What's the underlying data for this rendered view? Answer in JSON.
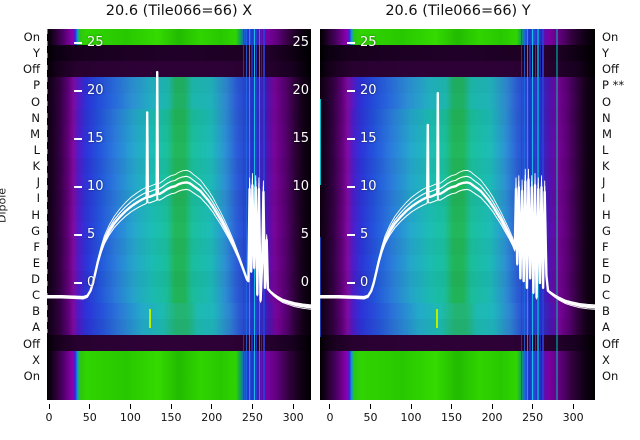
{
  "titles": {
    "left": "20.6 (Tile066=66) X",
    "right": "20.6 (Tile066=66) Y"
  },
  "dipole_axis": {
    "label": "Dipole",
    "left_labels": [
      "On",
      "Y",
      "Off",
      "P",
      "O",
      "N",
      "M",
      "L",
      "K",
      "J",
      "I",
      "H",
      "G",
      "F",
      "E",
      "D",
      "C",
      "B",
      "A",
      "Off",
      "X",
      "On"
    ],
    "right_labels": [
      "On",
      "Y",
      "Off",
      "P **",
      "O",
      "N",
      "M",
      "L",
      "K",
      "J",
      "I",
      "H",
      "G",
      "F",
      "E",
      "D",
      "C",
      "B",
      "A",
      "Off",
      "X",
      "On"
    ]
  },
  "heatmap_rows": {
    "types": [
      "bright",
      "dark",
      "off",
      "data_top",
      "data_top",
      "data_mid",
      "data_mid",
      "data_mid",
      "data_mid",
      "data_mid",
      "data_mid",
      "data_mid",
      "data_mid",
      "data_mid",
      "data_mid",
      "data_mid",
      "data_mid",
      "data_low",
      "data_low",
      "off",
      "bright",
      "bright",
      "bright"
    ],
    "gradients": {
      "bright": [
        [
          0,
          "#000000"
        ],
        [
          0.012,
          "#0c0010"
        ],
        [
          0.03,
          "#270030"
        ],
        [
          0.055,
          "#44005c"
        ],
        [
          0.08,
          "#70008e"
        ],
        [
          0.098,
          "#8a00b2"
        ],
        [
          0.107,
          "#3328d8"
        ],
        [
          0.115,
          "#0a9ae0"
        ],
        [
          0.124,
          "#2cc414"
        ],
        [
          0.15,
          "#30d400"
        ],
        [
          0.3,
          "#28c800"
        ],
        [
          0.42,
          "#34da00"
        ],
        [
          0.5,
          "#22bb00"
        ],
        [
          0.58,
          "#30d400"
        ],
        [
          0.66,
          "#28c800"
        ],
        [
          0.715,
          "#2fd400"
        ],
        [
          0.733,
          "#0f9e60"
        ],
        [
          0.748,
          "#1d59d8"
        ],
        [
          0.762,
          "#2233cc"
        ],
        [
          0.775,
          "#1d59d8"
        ],
        [
          0.79,
          "#2d2cc4"
        ],
        [
          0.81,
          "#5512b0"
        ],
        [
          0.835,
          "#7a00a0"
        ],
        [
          0.875,
          "#5c0078"
        ],
        [
          0.915,
          "#33003f"
        ],
        [
          0.955,
          "#14001a"
        ],
        [
          1,
          "#000000"
        ]
      ],
      "dark": [
        [
          0,
          "#000000"
        ],
        [
          0.03,
          "#0b0010"
        ],
        [
          0.1,
          "#16001c"
        ],
        [
          0.3,
          "#1d0024"
        ],
        [
          0.5,
          "#200028"
        ],
        [
          0.73,
          "#1d0024"
        ],
        [
          0.8,
          "#2a0133"
        ],
        [
          0.9,
          "#16001c"
        ],
        [
          1,
          "#000000"
        ]
      ],
      "off": [
        [
          0,
          "#000000"
        ],
        [
          0.02,
          "#0e0012"
        ],
        [
          0.06,
          "#1c0022"
        ],
        [
          0.12,
          "#280130"
        ],
        [
          0.35,
          "#2d0136"
        ],
        [
          0.65,
          "#2d0136"
        ],
        [
          0.82,
          "#280130"
        ],
        [
          0.93,
          "#180020"
        ],
        [
          1,
          "#000000"
        ]
      ],
      "data_top": [
        [
          0,
          "#0d0010"
        ],
        [
          0.02,
          "#1a0022"
        ],
        [
          0.05,
          "#330042"
        ],
        [
          0.08,
          "#5c0076"
        ],
        [
          0.1,
          "#7c0a9e"
        ],
        [
          0.12,
          "#5618c0"
        ],
        [
          0.145,
          "#2c2ed2"
        ],
        [
          0.19,
          "#2348d6"
        ],
        [
          0.25,
          "#2766d8"
        ],
        [
          0.32,
          "#2b8cd0"
        ],
        [
          0.4,
          "#21aebe"
        ],
        [
          0.46,
          "#1cb4a8"
        ],
        [
          0.485,
          "#1fae62"
        ],
        [
          0.52,
          "#1fae62"
        ],
        [
          0.55,
          "#1cb4a8"
        ],
        [
          0.62,
          "#1fb0b6"
        ],
        [
          0.68,
          "#2e84cc"
        ],
        [
          0.72,
          "#2b57d2"
        ],
        [
          0.76,
          "#2440cc"
        ],
        [
          0.8,
          "#2c2cc0"
        ],
        [
          0.833,
          "#4a14ae"
        ],
        [
          0.862,
          "#740494"
        ],
        [
          0.9,
          "#560070"
        ],
        [
          0.94,
          "#2c0038"
        ],
        [
          0.97,
          "#120016"
        ],
        [
          1,
          "#05000a"
        ]
      ],
      "data_mid": [
        [
          0,
          "#0d0010"
        ],
        [
          0.02,
          "#1a0022"
        ],
        [
          0.05,
          "#340044"
        ],
        [
          0.08,
          "#600078"
        ],
        [
          0.1,
          "#7e0aa0"
        ],
        [
          0.12,
          "#4c1cc6"
        ],
        [
          0.15,
          "#2b34d4"
        ],
        [
          0.2,
          "#2354d8"
        ],
        [
          0.26,
          "#2a7ad8"
        ],
        [
          0.33,
          "#24a4c8"
        ],
        [
          0.4,
          "#1bbab0"
        ],
        [
          0.455,
          "#1abc9a"
        ],
        [
          0.485,
          "#21b358"
        ],
        [
          0.52,
          "#21b358"
        ],
        [
          0.55,
          "#1abc9a"
        ],
        [
          0.62,
          "#1cb8b4"
        ],
        [
          0.675,
          "#2c8ed0"
        ],
        [
          0.72,
          "#2b5ad4"
        ],
        [
          0.765,
          "#2540cc"
        ],
        [
          0.8,
          "#2c2ec2"
        ],
        [
          0.833,
          "#4c14b0"
        ],
        [
          0.862,
          "#760496"
        ],
        [
          0.9,
          "#580072"
        ],
        [
          0.94,
          "#2c0038"
        ],
        [
          0.97,
          "#120016"
        ],
        [
          1,
          "#05000a"
        ]
      ],
      "data_low": [
        [
          0,
          "#0d0010"
        ],
        [
          0.02,
          "#1a0022"
        ],
        [
          0.05,
          "#330042"
        ],
        [
          0.08,
          "#5c0076"
        ],
        [
          0.1,
          "#7c0a9e"
        ],
        [
          0.12,
          "#4a1ac2"
        ],
        [
          0.15,
          "#2b32d2"
        ],
        [
          0.21,
          "#2450d4"
        ],
        [
          0.28,
          "#2a78d2"
        ],
        [
          0.36,
          "#22a6c4"
        ],
        [
          0.44,
          "#1cb6ac"
        ],
        [
          0.49,
          "#22b070"
        ],
        [
          0.53,
          "#22b070"
        ],
        [
          0.57,
          "#1cb6ac"
        ],
        [
          0.63,
          "#1eb2b8"
        ],
        [
          0.69,
          "#2d82cc"
        ],
        [
          0.73,
          "#2b55d0"
        ],
        [
          0.77,
          "#2440ca"
        ],
        [
          0.81,
          "#2c2cbe"
        ],
        [
          0.84,
          "#4a14ac"
        ],
        [
          0.87,
          "#740494"
        ],
        [
          0.905,
          "#560070"
        ],
        [
          0.94,
          "#2c0038"
        ],
        [
          0.97,
          "#120016"
        ],
        [
          1,
          "#05000a"
        ]
      ]
    }
  },
  "curve_style": {
    "color": "#ffffff",
    "strand_factors": [
      1.0,
      1.06,
      0.93,
      1.12
    ],
    "strand_widths": [
      2.4,
      1.1,
      1.1,
      0.9
    ],
    "strand_cap": 10.6
  },
  "chart_data": [
    {
      "type": "heatmap",
      "title": "20.6 (Tile066=66) X",
      "polarisation": "X",
      "xlim": [
        -2.5,
        322
      ],
      "ylim": [
        -12.2,
        26.5
      ],
      "x_ticks": [
        0,
        50,
        100,
        150,
        200,
        250,
        300
      ],
      "inner_y_ticks": [
        25,
        20,
        15,
        10,
        5,
        0
      ],
      "inner_labels_left": true,
      "inner_labels_right": true,
      "curve": {
        "x": [
          -2.5,
          15,
          30,
          42,
          47,
          51,
          54,
          57,
          60,
          64,
          68,
          74,
          80,
          87,
          94,
          101,
          108,
          114,
          119,
          120,
          120.7,
          121.5,
          124,
          127,
          130,
          132.4,
          133,
          133.8,
          136,
          140,
          145,
          150,
          155,
          159,
          164,
          169,
          173,
          177,
          181,
          186,
          191,
          196,
          201,
          206,
          211,
          216,
          221,
          226,
          230,
          234,
          238,
          241,
          243.5,
          245,
          246.5,
          248.5,
          250,
          252,
          254,
          256,
          258,
          260,
          262,
          263.5,
          265.5,
          267.5,
          269,
          272,
          276,
          281,
          287,
          294,
          302,
          312,
          322
        ],
        "y": [
          -1.4,
          -1.4,
          -1.45,
          -1.5,
          -1.35,
          -0.8,
          0,
          1.1,
          2.2,
          3.4,
          4.4,
          5.4,
          6.2,
          6.9,
          7.5,
          8.0,
          8.4,
          8.7,
          8.9,
          9.0,
          17.8,
          9.0,
          9.0,
          9.1,
          9.2,
          9.3,
          22.0,
          9.3,
          9.3,
          9.5,
          9.8,
          10.0,
          10.1,
          10.3,
          10.45,
          10.5,
          10.4,
          10.15,
          9.9,
          9.6,
          9.1,
          8.6,
          8.0,
          7.3,
          6.6,
          5.8,
          5.0,
          4.1,
          3.3,
          2.5,
          1.6,
          0.9,
          0.35,
          0.2,
          9.8,
          1.2,
          10.2,
          1.6,
          10.0,
          -1.2,
          9.8,
          -1.8,
          2.2,
          9.5,
          -0.5,
          4.5,
          -0.6,
          -0.9,
          -1.2,
          -1.5,
          -1.8,
          -2.0,
          -2.2,
          -2.35,
          -2.45
        ]
      },
      "stripes": [
        {
          "x": -2.4,
          "w": 1.5,
          "color": "#00c040",
          "top": 0,
          "bottom": 0.82,
          "dash": true,
          "opacity": 0.95
        },
        {
          "x": 239,
          "w": 1,
          "color": "#2a3fd8",
          "top": 0,
          "bottom": 1,
          "opacity": 0.7
        },
        {
          "x": 243,
          "w": 1.5,
          "color": "#1e6ae0",
          "top": 0,
          "bottom": 1,
          "opacity": 0.8
        },
        {
          "x": 246,
          "w": 1,
          "color": "#00b4d8",
          "top": 0,
          "bottom": 1,
          "opacity": 0.85
        },
        {
          "x": 249,
          "w": 2,
          "color": "#2233cc",
          "top": 0,
          "bottom": 1,
          "opacity": 0.85
        },
        {
          "x": 252.5,
          "w": 1,
          "color": "#18c8e8",
          "top": 0,
          "bottom": 1,
          "opacity": 0.9
        },
        {
          "x": 255.5,
          "w": 1,
          "color": "#2a3fd8",
          "top": 0,
          "bottom": 1,
          "opacity": 0.8
        },
        {
          "x": 258.5,
          "w": 1.5,
          "color": "#00a8d0",
          "top": 0,
          "bottom": 1,
          "opacity": 0.85
        },
        {
          "x": 261.5,
          "w": 1,
          "color": "#2233cc",
          "top": 0,
          "bottom": 1,
          "opacity": 0.8
        },
        {
          "x": 264.5,
          "w": 2,
          "color": "#2a3fd8",
          "top": 0,
          "bottom": 1,
          "opacity": 0.85
        },
        {
          "x": 124,
          "w": 1.5,
          "color": "#b8f000",
          "top": 0.755,
          "bottom": 0.805,
          "opacity": 1
        }
      ]
    },
    {
      "type": "heatmap",
      "title": "20.6 (Tile066=66) Y",
      "polarisation": "Y",
      "xlim": [
        -12.3,
        327
      ],
      "ylim": [
        -12.2,
        26.5
      ],
      "x_ticks": [
        0,
        50,
        100,
        150,
        200,
        250,
        300
      ],
      "inner_y_ticks": [
        25,
        20,
        15,
        10,
        5,
        0
      ],
      "inner_labels_left": true,
      "inner_labels_right": false,
      "curve": {
        "x": [
          -12,
          10,
          30,
          42,
          47,
          51,
          54,
          57,
          60,
          64,
          68,
          74,
          80,
          87,
          94,
          101,
          108,
          114,
          119,
          120,
          120.7,
          121.5,
          124,
          127,
          130,
          132.4,
          133,
          133.8,
          136,
          140,
          145,
          150,
          155,
          159,
          164,
          169,
          173,
          177,
          181,
          186,
          191,
          196,
          201,
          206,
          211,
          216,
          221,
          225,
          228,
          229.5,
          231,
          233,
          235,
          237,
          239,
          241,
          243,
          245,
          247,
          249,
          251,
          253,
          255,
          257,
          259,
          261,
          263,
          265,
          267,
          269,
          272,
          277,
          283,
          290,
          298,
          308,
          318,
          327
        ],
        "y": [
          -1.4,
          -1.4,
          -1.45,
          -1.5,
          -1.35,
          -0.8,
          0,
          1.1,
          2.2,
          3.4,
          4.4,
          5.4,
          6.2,
          6.9,
          7.5,
          8.0,
          8.4,
          8.7,
          8.9,
          9.0,
          16.5,
          9.0,
          9.0,
          9.1,
          9.2,
          9.3,
          19.8,
          9.3,
          9.3,
          9.5,
          9.8,
          10.0,
          10.1,
          10.3,
          10.45,
          10.5,
          10.4,
          10.15,
          9.9,
          9.6,
          9.1,
          8.6,
          8.0,
          7.3,
          6.6,
          5.8,
          5.0,
          4.3,
          3.6,
          9.8,
          2.0,
          10.0,
          0.5,
          9.6,
          0.2,
          10.6,
          -0.5,
          10.8,
          0.5,
          10.0,
          -1.0,
          10.2,
          -1.5,
          9.8,
          0.0,
          10.0,
          -0.5,
          9.5,
          0.8,
          -0.8,
          -1.0,
          -1.3,
          -1.6,
          -1.9,
          -2.1,
          -2.3,
          -2.4,
          -2.45
        ]
      },
      "stripes": [
        {
          "x": -11.6,
          "w": 1.5,
          "color": "#00c8d8",
          "top": 0.19,
          "bottom": 0.42,
          "opacity": 0.95
        },
        {
          "x": -11.6,
          "w": 1.5,
          "color": "#2040c0",
          "top": 0.56,
          "bottom": 0.83,
          "opacity": 0.9
        },
        {
          "x": 236,
          "w": 1,
          "color": "#2a3fd8",
          "top": 0,
          "bottom": 1,
          "opacity": 0.7
        },
        {
          "x": 240,
          "w": 1.5,
          "color": "#1e6ae0",
          "top": 0,
          "bottom": 1,
          "opacity": 0.8
        },
        {
          "x": 243.5,
          "w": 1,
          "color": "#00b4d8",
          "top": 0,
          "bottom": 1,
          "opacity": 0.85
        },
        {
          "x": 247,
          "w": 2,
          "color": "#2233cc",
          "top": 0,
          "bottom": 1,
          "opacity": 0.85
        },
        {
          "x": 250.5,
          "w": 1,
          "color": "#18c8e8",
          "top": 0,
          "bottom": 1,
          "opacity": 0.9
        },
        {
          "x": 253.5,
          "w": 1,
          "color": "#2a3fd8",
          "top": 0,
          "bottom": 1,
          "opacity": 0.8
        },
        {
          "x": 256.5,
          "w": 1.5,
          "color": "#00a8d0",
          "top": 0,
          "bottom": 1,
          "opacity": 0.85
        },
        {
          "x": 259.5,
          "w": 1,
          "color": "#2233cc",
          "top": 0,
          "bottom": 1,
          "opacity": 0.8
        },
        {
          "x": 262.5,
          "w": 2,
          "color": "#2a3fd8",
          "top": 0,
          "bottom": 1,
          "opacity": 0.85
        },
        {
          "x": 280,
          "w": 1.5,
          "color": "#00b8b0",
          "top": 0,
          "bottom": 1,
          "opacity": 0.55
        },
        {
          "x": 132,
          "w": 1.5,
          "color": "#b8f000",
          "top": 0.755,
          "bottom": 0.805,
          "opacity": 1
        }
      ]
    }
  ]
}
